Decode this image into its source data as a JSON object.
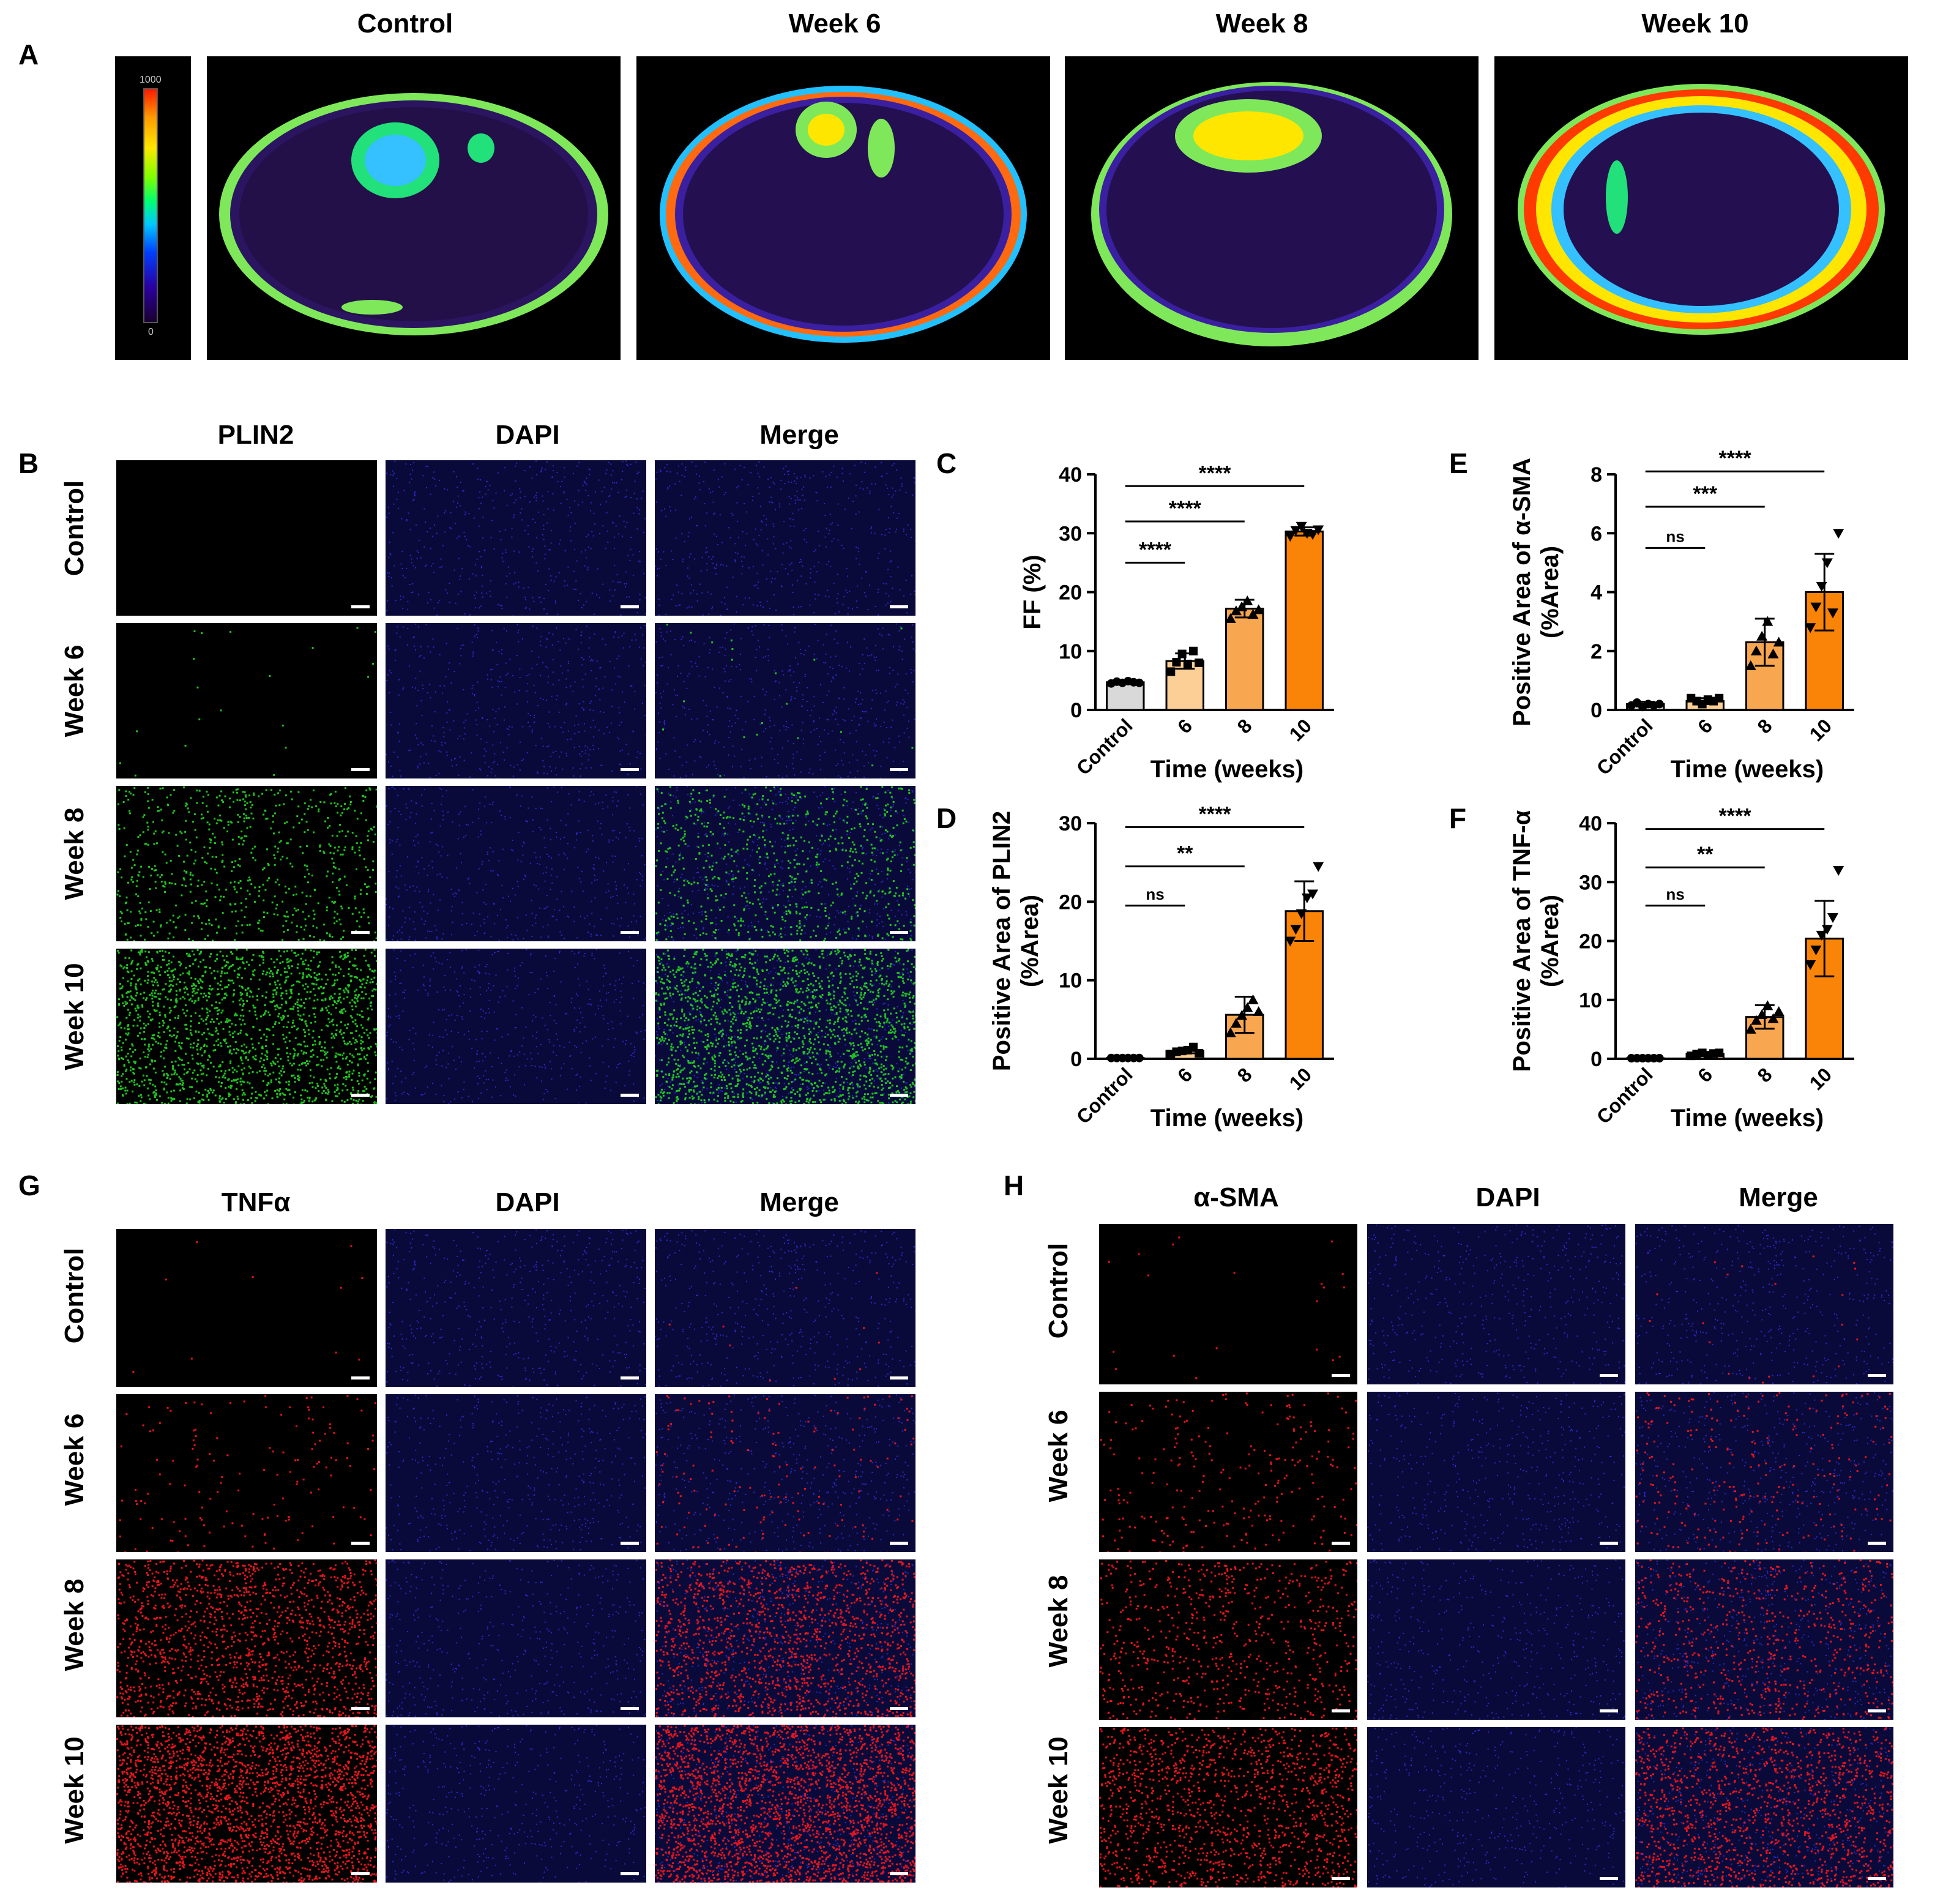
{
  "panel_a": {
    "letter": "A",
    "columns": [
      "Control",
      "Week 6",
      "Week 8",
      "Week 10"
    ],
    "colorbar": {
      "max_label": "1000",
      "min_label": "0"
    }
  },
  "panel_b": {
    "letter": "B",
    "columns": [
      "PLIN2",
      "DAPI",
      "Merge"
    ],
    "rows": [
      "Control",
      "Week 6",
      "Week 8",
      "Week 10"
    ],
    "stain_color": "#21c421"
  },
  "panel_g": {
    "letter": "G",
    "columns": [
      "TNFα",
      "DAPI",
      "Merge"
    ],
    "rows": [
      "Control",
      "Week 6",
      "Week 8",
      "Week 10"
    ],
    "stain_color": "#e8141c"
  },
  "panel_h": {
    "letter": "H",
    "columns": [
      "α-SMA",
      "DAPI",
      "Merge"
    ],
    "rows": [
      "Control",
      "Week 6",
      "Week 8",
      "Week 10"
    ],
    "stain_color": "#e8141c"
  },
  "colors": {
    "control_bar": "#d9d9d9",
    "week6_bar": "#fbcf96",
    "week8_bar": "#f8a650",
    "week10_bar": "#f98407"
  },
  "chart_data": [
    {
      "panel": "C",
      "type": "bar",
      "categories": [
        "Control",
        "6",
        "8",
        "10"
      ],
      "values": [
        4.7,
        8.3,
        17.2,
        30.3
      ],
      "errors": [
        0.3,
        1.3,
        1.5,
        0.7
      ],
      "points": [
        [
          4.5,
          4.8,
          4.6,
          4.9,
          4.7,
          4.6
        ],
        [
          6.5,
          8.1,
          9.5,
          7.8,
          10.0,
          8.0
        ],
        [
          15.5,
          16.8,
          17.5,
          18.5,
          16.2,
          17.0
        ],
        [
          29.5,
          30.5,
          31.2,
          30.0,
          29.8,
          30.6
        ]
      ],
      "markers": [
        "circle",
        "square",
        "triangle",
        "triangle-down"
      ],
      "xlabel": "Time (weeks)",
      "ylabel": "FF (%)",
      "ylim": [
        0,
        40
      ],
      "yticks": [
        0,
        10,
        20,
        30,
        40
      ],
      "significance": [
        {
          "from": 0,
          "to": 1,
          "y": 25,
          "label": "****"
        },
        {
          "from": 0,
          "to": 2,
          "y": 32,
          "label": "****"
        },
        {
          "from": 0,
          "to": 3,
          "y": 38,
          "label": "****"
        }
      ]
    },
    {
      "panel": "D",
      "type": "bar",
      "categories": [
        "Control",
        "6",
        "8",
        "10"
      ],
      "values": [
        0.1,
        1.0,
        5.6,
        18.8
      ],
      "errors": [
        0.05,
        0.3,
        2.3,
        3.8
      ],
      "points": [
        [
          0.1,
          0.1,
          0.1,
          0.1,
          0.1,
          0.1
        ],
        [
          0.6,
          0.9,
          1.0,
          1.1,
          1.5,
          0.7
        ],
        [
          3.3,
          4.5,
          5.5,
          6.5,
          7.5,
          6.0
        ],
        [
          15.0,
          16.5,
          18.5,
          20.5,
          21.0,
          24.5
        ]
      ],
      "markers": [
        "circle",
        "square",
        "triangle",
        "triangle-down"
      ],
      "xlabel": "Time (weeks)",
      "ylabel": "Positive Area of PLIN2\n(%Area)",
      "ylim": [
        0,
        30
      ],
      "yticks": [
        0,
        10,
        20,
        30
      ],
      "significance": [
        {
          "from": 0,
          "to": 1,
          "y": 19.5,
          "label": "ns"
        },
        {
          "from": 0,
          "to": 2,
          "y": 24.5,
          "label": "**"
        },
        {
          "from": 0,
          "to": 3,
          "y": 29.5,
          "label": "****"
        }
      ]
    },
    {
      "panel": "E",
      "type": "bar",
      "categories": [
        "Control",
        "6",
        "8",
        "10"
      ],
      "values": [
        0.2,
        0.3,
        2.3,
        4.0
      ],
      "errors": [
        0.08,
        0.1,
        0.8,
        1.3
      ],
      "points": [
        [
          0.15,
          0.25,
          0.1,
          0.2,
          0.15,
          0.2
        ],
        [
          0.4,
          0.3,
          0.2,
          0.35,
          0.3,
          0.4
        ],
        [
          1.5,
          2.0,
          2.5,
          3.0,
          1.9,
          2.3
        ],
        [
          2.8,
          3.5,
          4.2,
          5.0,
          3.3,
          6.0
        ]
      ],
      "markers": [
        "circle",
        "square",
        "triangle",
        "triangle-down"
      ],
      "xlabel": "Time (weeks)",
      "ylabel": "Positive Area of α-SMA\n(%Area)",
      "ylim": [
        0,
        8
      ],
      "yticks": [
        0,
        2,
        4,
        6,
        8
      ],
      "significance": [
        {
          "from": 0,
          "to": 1,
          "y": 5.5,
          "label": "ns"
        },
        {
          "from": 0,
          "to": 2,
          "y": 6.9,
          "label": "***"
        },
        {
          "from": 0,
          "to": 3,
          "y": 8.1,
          "label": "****"
        }
      ]
    },
    {
      "panel": "F",
      "type": "bar",
      "categories": [
        "Control",
        "6",
        "8",
        "10"
      ],
      "values": [
        0.1,
        0.8,
        7.1,
        20.4
      ],
      "errors": [
        0.05,
        0.2,
        2.0,
        6.4
      ],
      "points": [
        [
          0.1,
          0.1,
          0.1,
          0.1,
          0.1,
          0.1
        ],
        [
          0.5,
          0.8,
          1.0,
          0.6,
          0.9,
          1.0
        ],
        [
          5.0,
          6.5,
          7.5,
          9.0,
          6.8,
          8.0
        ],
        [
          16.0,
          18.5,
          21.0,
          22.0,
          24.0,
          32.0
        ]
      ],
      "markers": [
        "circle",
        "square",
        "triangle",
        "triangle-down"
      ],
      "xlabel": "Time (weeks)",
      "ylabel": "Positive Area of TNF-α\n(%Area)",
      "ylim": [
        0,
        40
      ],
      "yticks": [
        0,
        10,
        20,
        30,
        40
      ],
      "significance": [
        {
          "from": 0,
          "to": 1,
          "y": 26,
          "label": "ns"
        },
        {
          "from": 0,
          "to": 2,
          "y": 32.5,
          "label": "**"
        },
        {
          "from": 0,
          "to": 3,
          "y": 39,
          "label": "****"
        }
      ]
    }
  ]
}
